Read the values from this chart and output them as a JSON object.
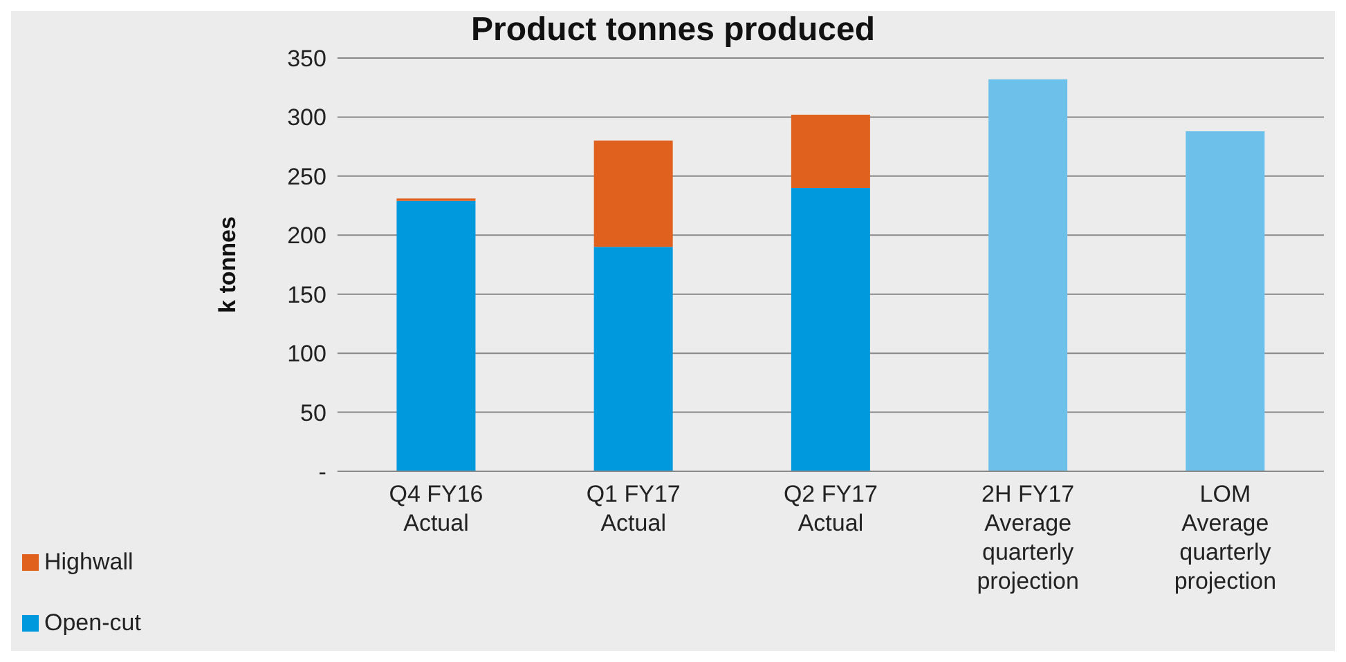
{
  "chart_data": {
    "type": "bar",
    "title": "Product tonnes produced",
    "ylabel": "k tonnes",
    "categories": [
      "Q4 FY16 Actual",
      "Q1 FY17 Actual",
      "Q2 FY17 Actual",
      "2H FY17 Average quarterly projection",
      "LOM Average quarterly projection"
    ],
    "series": [
      {
        "name": "Open-cut",
        "color": "#0099dd",
        "values": [
          229,
          190,
          240,
          null,
          null
        ]
      },
      {
        "name": "Highwall",
        "color": "#e0601e",
        "values": [
          2,
          90,
          62,
          null,
          null
        ]
      },
      {
        "color": "#6cc0ea",
        "values": [
          null,
          null,
          null,
          332,
          288
        ]
      }
    ],
    "stacked": true,
    "ylim": [
      0,
      350
    ],
    "yticks": [
      {
        "value": 0,
        "label": "-"
      },
      50,
      100,
      150,
      200,
      250,
      300,
      350
    ],
    "grid": "y",
    "legend": "bottom left"
  }
}
